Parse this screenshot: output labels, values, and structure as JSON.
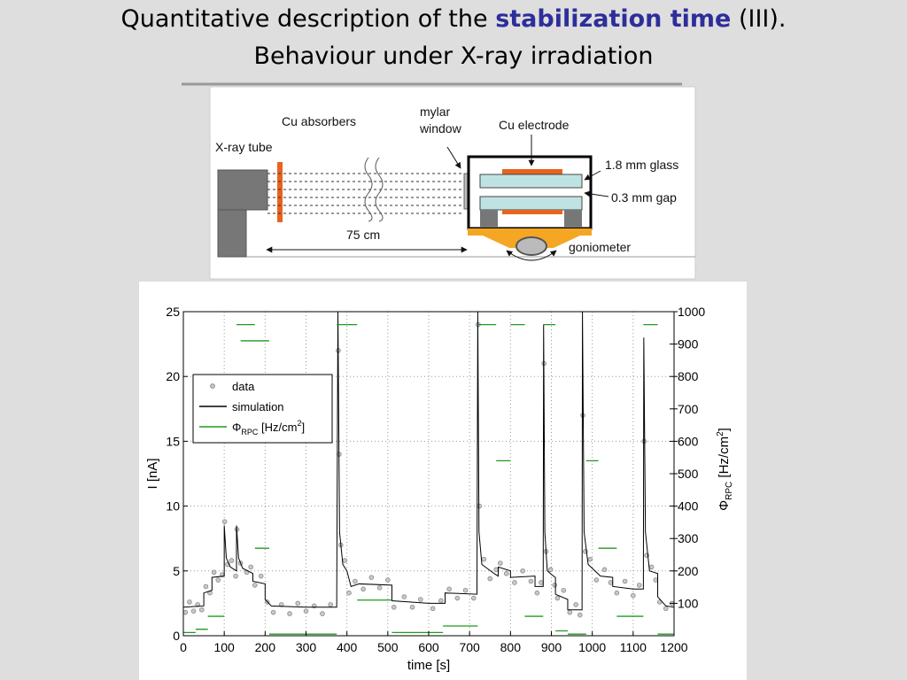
{
  "header": {
    "title_parts": [
      "Quantitative description of the ",
      "stabilization time",
      " (III)."
    ],
    "subtitle": "Behaviour under X-ray irradiation"
  },
  "diagram": {
    "cu_absorbers": "Cu absorbers",
    "mylar_window": [
      "mylar",
      "window"
    ],
    "cu_electrode": "Cu electrode",
    "xray_tube": "X-ray tube",
    "glass": "1.8 mm glass",
    "gap": "0.3 mm gap",
    "distance": "75 cm",
    "goniometer": "goniometer"
  },
  "chart_data": {
    "type": "line",
    "xlabel": "time [s]",
    "ylabel": "I [nA]",
    "y2label": {
      "symbol": "Φ",
      "sub": "RPC",
      "unit": " [Hz/cm",
      "sup": "2",
      "close": "]"
    },
    "xlim": [
      0,
      1200
    ],
    "xticks": [
      0,
      100,
      200,
      300,
      400,
      500,
      600,
      700,
      800,
      900,
      1000,
      1100,
      1200
    ],
    "ylim": [
      0,
      25
    ],
    "yticks": [
      0,
      5,
      10,
      15,
      20,
      25
    ],
    "y2lim": [
      0,
      1000
    ],
    "y2ticks": [
      100,
      200,
      300,
      400,
      500,
      600,
      700,
      800,
      900,
      1000
    ],
    "grid": true,
    "legend": "upper left",
    "series": [
      {
        "name": "data",
        "type": "scatter",
        "color": "#8a8a8a",
        "x": [
          5,
          15,
          25,
          35,
          45,
          55,
          65,
          75,
          85,
          95,
          101,
          108,
          118,
          128,
          131,
          140,
          155,
          165,
          175,
          190,
          205,
          220,
          240,
          260,
          280,
          300,
          320,
          340,
          360,
          379,
          381,
          385,
          395,
          405,
          420,
          440,
          460,
          480,
          500,
          515,
          540,
          560,
          580,
          610,
          630,
          650,
          670,
          690,
          710,
          721,
          724,
          735,
          750,
          765,
          775,
          790,
          810,
          830,
          850,
          865,
          875,
          882,
          887,
          898,
          908,
          915,
          930,
          945,
          960,
          970,
          977,
          983,
          995,
          1010,
          1030,
          1045,
          1060,
          1080,
          1100,
          1115,
          1127,
          1133,
          1145,
          1155,
          1165,
          1180,
          1195
        ],
        "values": [
          1.8,
          2.6,
          1.9,
          2.4,
          2.0,
          3.8,
          3.3,
          4.9,
          4.3,
          4.7,
          8.8,
          5.5,
          5.8,
          4.6,
          8.2,
          5.6,
          4.9,
          5.3,
          3.9,
          4.6,
          2.6,
          1.8,
          2.4,
          1.7,
          2.5,
          1.9,
          2.3,
          1.7,
          2.4,
          22,
          14,
          7,
          5.8,
          3.3,
          4.2,
          3.6,
          4.5,
          3.7,
          4.3,
          2.2,
          3.0,
          2.2,
          2.8,
          2.1,
          2.7,
          3.6,
          2.9,
          3.5,
          2.9,
          24,
          10,
          5.9,
          4.4,
          5.1,
          5.6,
          4.8,
          4.1,
          5,
          4.2,
          3.3,
          4.1,
          21,
          6.5,
          5.1,
          3.9,
          2.9,
          3.5,
          1.8,
          2.4,
          1.6,
          17,
          6.5,
          5.9,
          4.3,
          5.1,
          4.1,
          3.3,
          4.2,
          3.1,
          3.9,
          15,
          6.2,
          5.3,
          4.3,
          2.6,
          2.1,
          2.5
        ]
      },
      {
        "name": "simulation",
        "type": "line",
        "color": "#000000",
        "x": [
          0,
          50,
          50,
          70,
          70,
          100,
          100,
          105,
          115,
          130,
          130,
          135,
          145,
          170,
          170,
          200,
          200,
          215,
          300,
          375,
          378,
          382,
          390,
          400,
          410,
          430,
          510,
          510,
          600,
          640,
          640,
          718,
          720,
          723,
          730,
          760,
          770,
          770,
          800,
          800,
          860,
          860,
          880,
          881,
          884,
          890,
          905,
          910,
          910,
          940,
          940,
          975,
          976,
          980,
          990,
          1020,
          1050,
          1050,
          1100,
          1125,
          1126,
          1130,
          1140,
          1160,
          1160,
          1180,
          1200
        ],
        "values": [
          2.2,
          2.3,
          3.3,
          3.5,
          4.5,
          4.6,
          8.5,
          6,
          5.3,
          5,
          8.5,
          6,
          5.2,
          4.8,
          4.2,
          4.0,
          2.8,
          2.3,
          2.2,
          2.2,
          25,
          8,
          5.5,
          5,
          3.8,
          4,
          3.9,
          2.7,
          2.5,
          2.5,
          3.3,
          3.2,
          25,
          8,
          5.5,
          4.8,
          4.6,
          5.3,
          5,
          4.5,
          4.6,
          3.8,
          3.8,
          24,
          8,
          5,
          4.6,
          4.5,
          3.2,
          2.8,
          2,
          2.0,
          25,
          8,
          5.5,
          4.6,
          4.5,
          3.8,
          3.6,
          3.6,
          23,
          8,
          5,
          4.8,
          3,
          2.3,
          2.2
        ]
      },
      {
        "name": "Φ",
        "name_sub": "RPC",
        "name_unit": " [Hz/cm",
        "name_sup": "2",
        "name_close": "]",
        "type": "line",
        "axis": "y2",
        "color": "#1f9a1f",
        "x": [
          0,
          30,
          null,
          30,
          60,
          null,
          60,
          100,
          null,
          130,
          175,
          null,
          140,
          210,
          null,
          175,
          210,
          null,
          210,
          375,
          null,
          375,
          425,
          null,
          425,
          510,
          null,
          510,
          635,
          null,
          635,
          720,
          null,
          720,
          765,
          null,
          765,
          800,
          null,
          800,
          835,
          null,
          835,
          880,
          null,
          880,
          910,
          null,
          910,
          940,
          null,
          940,
          985,
          null,
          985,
          1015,
          null,
          1015,
          1060,
          null,
          1060,
          1125,
          null,
          1125,
          1160,
          null,
          1160,
          1200
        ],
        "values": [
          10,
          10,
          null,
          20,
          20,
          null,
          60,
          60,
          null,
          960,
          960,
          null,
          910,
          910,
          null,
          270,
          270,
          null,
          5,
          5,
          null,
          960,
          960,
          null,
          110,
          110,
          null,
          10,
          10,
          null,
          30,
          30,
          null,
          960,
          960,
          null,
          540,
          540,
          null,
          960,
          960,
          null,
          60,
          60,
          null,
          960,
          960,
          null,
          15,
          15,
          null,
          5,
          5,
          null,
          540,
          540,
          null,
          270,
          270,
          null,
          60,
          60,
          null,
          960,
          960,
          null,
          5,
          5
        ]
      }
    ]
  }
}
